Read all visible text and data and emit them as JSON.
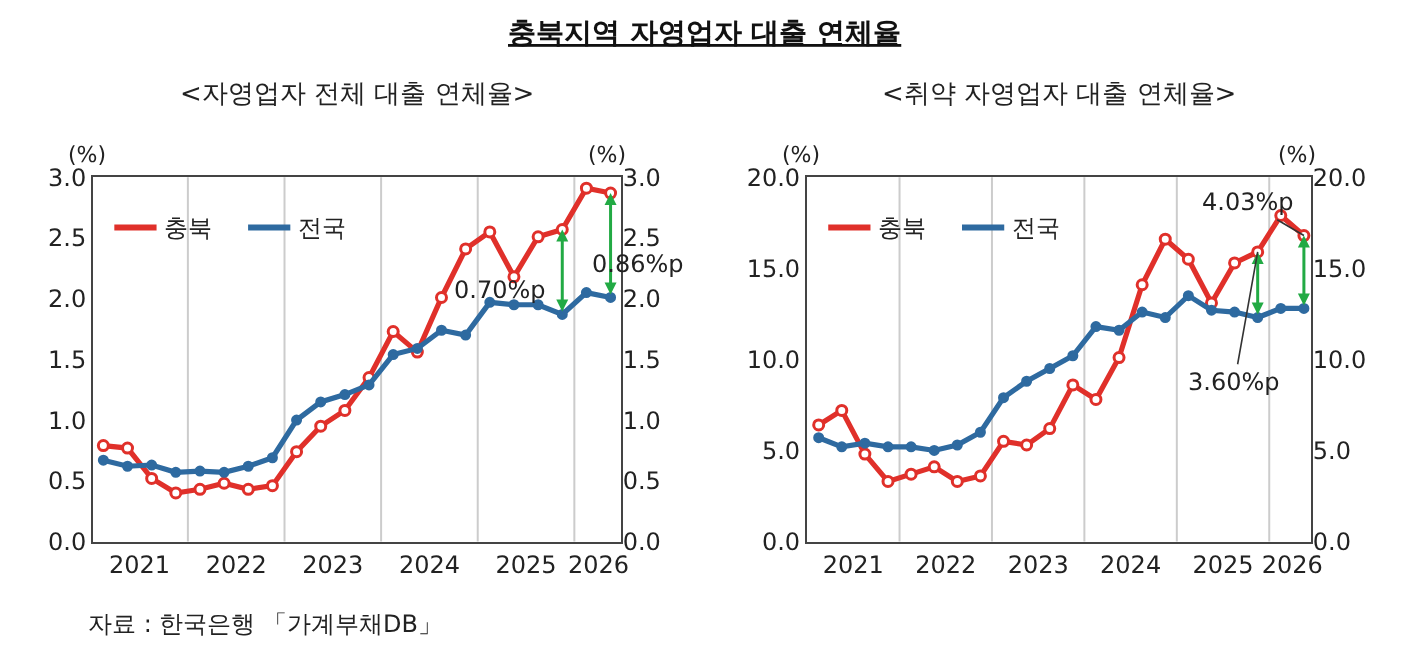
{
  "chart_data": [
    {
      "type": "line",
      "title": "충북지역 자영업자 대출 연체율",
      "subtitle": "<자영업자 전체 대출 연체율>",
      "ylabel": "(%)",
      "y2label": "(%)",
      "x": [
        2021.125,
        2021.375,
        2021.625,
        2021.875,
        2022.125,
        2022.375,
        2022.625,
        2022.875,
        2023.125,
        2023.375,
        2023.625,
        2023.875,
        2024.125,
        2024.375,
        2024.625,
        2024.875,
        2025.125,
        2025.375,
        2025.625,
        2025.875,
        2026.125,
        2026.375
      ],
      "xlim": [
        2021.02,
        2026.48
      ],
      "xticks": [
        {
          "value": 2021.5,
          "label": "2021"
        },
        {
          "value": 2022,
          "label": null
        },
        {
          "value": 2022.5,
          "label": "2022"
        },
        {
          "value": 2023,
          "label": null
        },
        {
          "value": 2023.5,
          "label": "2023"
        },
        {
          "value": 2024,
          "label": null
        },
        {
          "value": 2024.5,
          "label": "2024"
        },
        {
          "value": 2025,
          "label": null
        },
        {
          "value": 2025.5,
          "label": "2025"
        },
        {
          "value": 2026,
          "label": null
        },
        {
          "value": 2026.25,
          "label": "2026"
        }
      ],
      "ylim": [
        0,
        3
      ],
      "yticks": [
        {
          "value": 0,
          "label": "0.0"
        },
        {
          "value": 0.5,
          "label": "0.5"
        },
        {
          "value": 1,
          "label": "1.0"
        },
        {
          "value": 1.5,
          "label": "1.5"
        },
        {
          "value": 2,
          "label": "2.0"
        },
        {
          "value": 2.5,
          "label": "2.5"
        },
        {
          "value": 3,
          "label": "3.0"
        }
      ],
      "y2lim": [
        0,
        3
      ],
      "y2ticks": [
        {
          "value": 0,
          "label": "0.0"
        },
        {
          "value": 0.5,
          "label": "0.5"
        },
        {
          "value": 1,
          "label": "1.0"
        },
        {
          "value": 1.5,
          "label": "1.5"
        },
        {
          "value": 2,
          "label": "2.0"
        },
        {
          "value": 2.5,
          "label": "2.5"
        },
        {
          "value": 3,
          "label": "3.0"
        }
      ],
      "grid": "x",
      "legend": "top left",
      "marker": "circle",
      "line_style": "solid",
      "series": [
        {
          "name": "충북",
          "color": "#e0302a",
          "values": [
            0.79,
            0.77,
            0.52,
            0.4,
            0.43,
            0.48,
            0.43,
            0.46,
            0.74,
            0.95,
            1.08,
            1.35,
            1.73,
            1.56,
            2.01,
            2.41,
            2.55,
            2.18,
            2.51,
            2.57,
            2.91,
            2.87
          ]
        },
        {
          "name": "전국",
          "color": "#2e6aa0",
          "values": [
            0.67,
            0.62,
            0.63,
            0.57,
            0.58,
            0.57,
            0.62,
            0.69,
            1.0,
            1.15,
            1.21,
            1.29,
            1.54,
            1.59,
            1.74,
            1.7,
            1.97,
            1.95,
            1.95,
            1.87,
            2.05,
            2.01
          ]
        }
      ],
      "annotations": [
        "0.70%p",
        "0.86%p",
        "자료 : 한국은행 「가계부채DB」"
      ]
    },
    {
      "type": "line",
      "subtitle": "<취약 자영업자 대출 연체율>",
      "ylabel": "(%)",
      "y2label": "(%)",
      "x": [
        2021.125,
        2021.375,
        2021.625,
        2021.875,
        2022.125,
        2022.375,
        2022.625,
        2022.875,
        2023.125,
        2023.375,
        2023.625,
        2023.875,
        2024.125,
        2024.375,
        2024.625,
        2024.875,
        2025.125,
        2025.375,
        2025.625,
        2025.875,
        2026.125,
        2026.375
      ],
      "xlim": [
        2021.0,
        2026.45
      ],
      "xticks": [
        {
          "value": 2021.5,
          "label": "2021"
        },
        {
          "value": 2022,
          "label": null
        },
        {
          "value": 2022.5,
          "label": "2022"
        },
        {
          "value": 2023,
          "label": null
        },
        {
          "value": 2023.5,
          "label": "2023"
        },
        {
          "value": 2024,
          "label": null
        },
        {
          "value": 2024.5,
          "label": "2024"
        },
        {
          "value": 2025,
          "label": null
        },
        {
          "value": 2025.5,
          "label": "2025"
        },
        {
          "value": 2026,
          "label": null
        },
        {
          "value": 2026.25,
          "label": "2026"
        }
      ],
      "ylim": [
        0,
        20
      ],
      "yticks": [
        {
          "value": 0,
          "label": "0.0"
        },
        {
          "value": 5,
          "label": "5.0"
        },
        {
          "value": 10,
          "label": "10.0"
        },
        {
          "value": 15,
          "label": "15.0"
        },
        {
          "value": 20,
          "label": "20.0"
        }
      ],
      "y2lim": [
        0,
        20
      ],
      "y2ticks": [
        {
          "value": 0,
          "label": "0.0"
        },
        {
          "value": 5,
          "label": "5.0"
        },
        {
          "value": 10,
          "label": "10.0"
        },
        {
          "value": 15,
          "label": "15.0"
        },
        {
          "value": 20,
          "label": "20.0"
        }
      ],
      "grid": "x",
      "legend": "top left",
      "marker": "circle",
      "line_style": "solid",
      "series": [
        {
          "name": "충북",
          "color": "#e0302a",
          "values": [
            6.4,
            7.2,
            4.8,
            3.3,
            3.7,
            4.1,
            3.3,
            3.6,
            5.5,
            5.3,
            6.2,
            8.6,
            7.8,
            10.1,
            14.1,
            16.6,
            15.5,
            13.1,
            15.3,
            15.9,
            17.9,
            16.8
          ]
        },
        {
          "name": "전국",
          "color": "#2e6aa0",
          "values": [
            5.7,
            5.2,
            5.4,
            5.2,
            5.2,
            5.0,
            5.3,
            6.0,
            7.9,
            8.8,
            9.5,
            10.2,
            11.8,
            11.6,
            12.6,
            12.3,
            13.5,
            12.7,
            12.6,
            12.3,
            12.8,
            12.8
          ]
        }
      ],
      "annotations": [
        {
          "text": "4.03%p",
          "x": 2026.375,
          "y": 16.8
        },
        {
          "text": "3.60%p",
          "x": 2025.875,
          "y": 15.9
        }
      ]
    }
  ]
}
